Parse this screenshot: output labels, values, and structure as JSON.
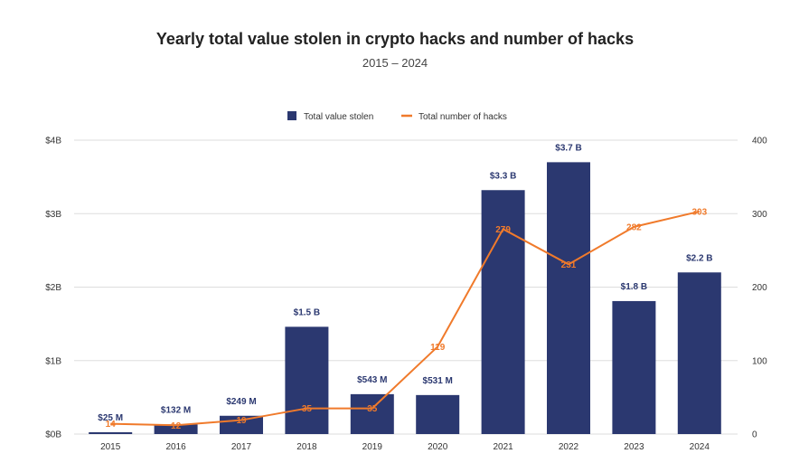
{
  "chart_data": {
    "type": "bar",
    "title": "Yearly total value stolen in crypto hacks and number of hacks",
    "subtitle": "2015 – 2024",
    "categories": [
      "2015",
      "2016",
      "2017",
      "2018",
      "2019",
      "2020",
      "2021",
      "2022",
      "2023",
      "2024"
    ],
    "series": [
      {
        "name": "Total value stolen",
        "type": "bar",
        "axis": "left",
        "color": "#2b3870",
        "values": [
          0.025,
          0.132,
          0.249,
          1.46,
          0.543,
          0.531,
          3.32,
          3.7,
          1.81,
          2.2
        ],
        "labels": [
          "$25  M",
          "$132  M",
          "$249  M",
          "$1.5 B",
          "$543  M",
          "$531  M",
          "$3.3 B",
          "$3.7 B",
          "$1.8 B",
          "$2.2 B"
        ]
      },
      {
        "name": "Total number of hacks",
        "type": "line",
        "axis": "right",
        "color": "#f07a2b",
        "values": [
          14,
          12,
          19,
          35,
          35,
          119,
          279,
          231,
          282,
          303
        ]
      }
    ],
    "left_axis": {
      "ticks": [
        "$0B",
        "$1B",
        "$2B",
        "$3B",
        "$4B"
      ],
      "ylim": [
        0,
        4
      ]
    },
    "right_axis": {
      "ticks": [
        "0",
        "100",
        "200",
        "300",
        "400"
      ],
      "ylim": [
        0,
        400
      ]
    },
    "grid": true,
    "legend_position": "top-center"
  }
}
